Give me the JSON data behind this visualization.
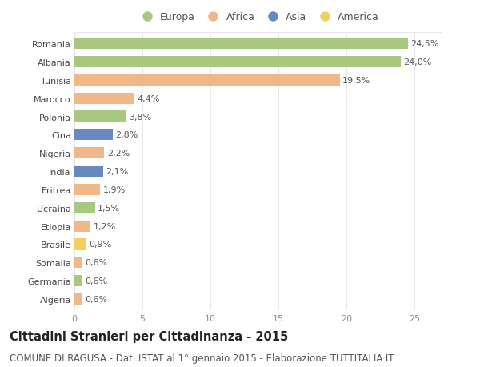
{
  "categories": [
    "Romania",
    "Albania",
    "Tunisia",
    "Marocco",
    "Polonia",
    "Cina",
    "Nigeria",
    "India",
    "Eritrea",
    "Ucraina",
    "Etiopia",
    "Brasile",
    "Somalia",
    "Germania",
    "Algeria"
  ],
  "values": [
    24.5,
    24.0,
    19.5,
    4.4,
    3.8,
    2.8,
    2.2,
    2.1,
    1.9,
    1.5,
    1.2,
    0.9,
    0.6,
    0.6,
    0.6
  ],
  "labels": [
    "24,5%",
    "24,0%",
    "19,5%",
    "4,4%",
    "3,8%",
    "2,8%",
    "2,2%",
    "2,1%",
    "1,9%",
    "1,5%",
    "1,2%",
    "0,9%",
    "0,6%",
    "0,6%",
    "0,6%"
  ],
  "bar_colors": [
    "#a8c880",
    "#a8c880",
    "#f0b888",
    "#f0b888",
    "#a8c880",
    "#6888c0",
    "#f0b888",
    "#6888c0",
    "#f0b888",
    "#a8c880",
    "#f0b888",
    "#f0d060",
    "#f0b888",
    "#a8c880",
    "#f0b888"
  ],
  "legend_labels": [
    "Europa",
    "Africa",
    "Asia",
    "America"
  ],
  "legend_colors": [
    "#a8c880",
    "#f0b888",
    "#6888c0",
    "#f0d060"
  ],
  "title": "Cittadini Stranieri per Cittadinanza - 2015",
  "subtitle": "COMUNE DI RAGUSA - Dati ISTAT al 1° gennaio 2015 - Elaborazione TUTTITALIA.IT",
  "xlim": [
    0,
    27
  ],
  "xticks": [
    0,
    5,
    10,
    15,
    20,
    25
  ],
  "background_color": "#ffffff",
  "grid_color": "#e8e8e8",
  "bar_height": 0.62,
  "title_fontsize": 10.5,
  "subtitle_fontsize": 8.5,
  "label_fontsize": 8.0,
  "tick_fontsize": 8.0,
  "legend_fontsize": 9.0
}
